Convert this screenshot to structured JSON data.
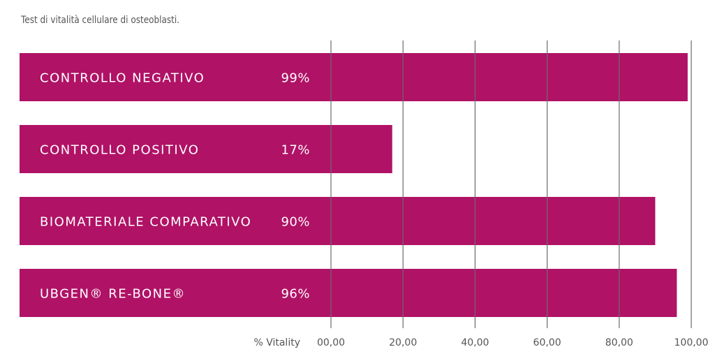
{
  "subtitle": "Test di vitalità cellulare di osteoblasti.",
  "colors": {
    "bar": "#b01266",
    "grid": "#6b6b6b",
    "text": "#555555"
  },
  "chart_data": {
    "type": "bar",
    "orientation": "horizontal",
    "title": "",
    "subtitle": "Test di vitalità cellulare di osteoblasti.",
    "xlabel": "% Vitality",
    "ylabel": "",
    "xlim": [
      0,
      100
    ],
    "grid": true,
    "categories": [
      "CONTROLLO NEGATIVO",
      "CONTROLLO POSITIVO",
      "BIOMATERIALE COMPARATIVO",
      "UBGEN® RE-BONE®"
    ],
    "values": [
      99,
      17,
      90,
      96
    ],
    "value_labels": [
      "99%",
      "17%",
      "90%",
      "96%"
    ],
    "ticks": [
      0,
      20,
      40,
      60,
      80,
      100
    ],
    "tick_labels": [
      "00,00",
      "20,00",
      "40,00",
      "60,00",
      "80,00",
      "100,00"
    ]
  }
}
